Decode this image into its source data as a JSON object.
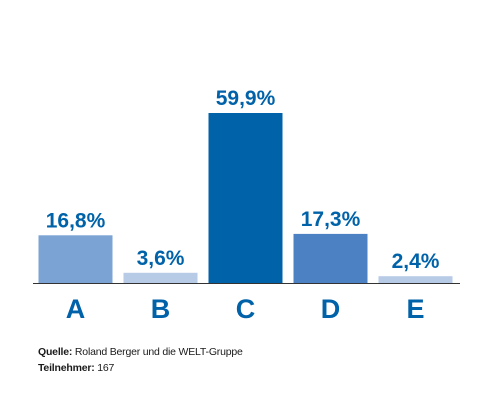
{
  "chart_data": {
    "type": "bar",
    "categories": [
      "A",
      "B",
      "C",
      "D",
      "E"
    ],
    "values": [
      16.8,
      3.6,
      59.9,
      17.3,
      2.4
    ],
    "data_labels": [
      "16,8%",
      "3,6%",
      "59,9%",
      "17,3%",
      "2,4%"
    ],
    "ylim": [
      0,
      59.9
    ],
    "grid": false,
    "legend": "none",
    "colors": [
      "#7ba3d4",
      "#b7cbe6",
      "#0062a8",
      "#4c82c3",
      "#b7cbe6"
    ],
    "label_color": "#0062a8",
    "axis_color": "#333333"
  },
  "footer": {
    "source_key": "Quelle:",
    "source_value": " Roland Berger und die WELT-Gruppe",
    "participants_key": "Teilnehmer:",
    "participants_value": " 167"
  }
}
